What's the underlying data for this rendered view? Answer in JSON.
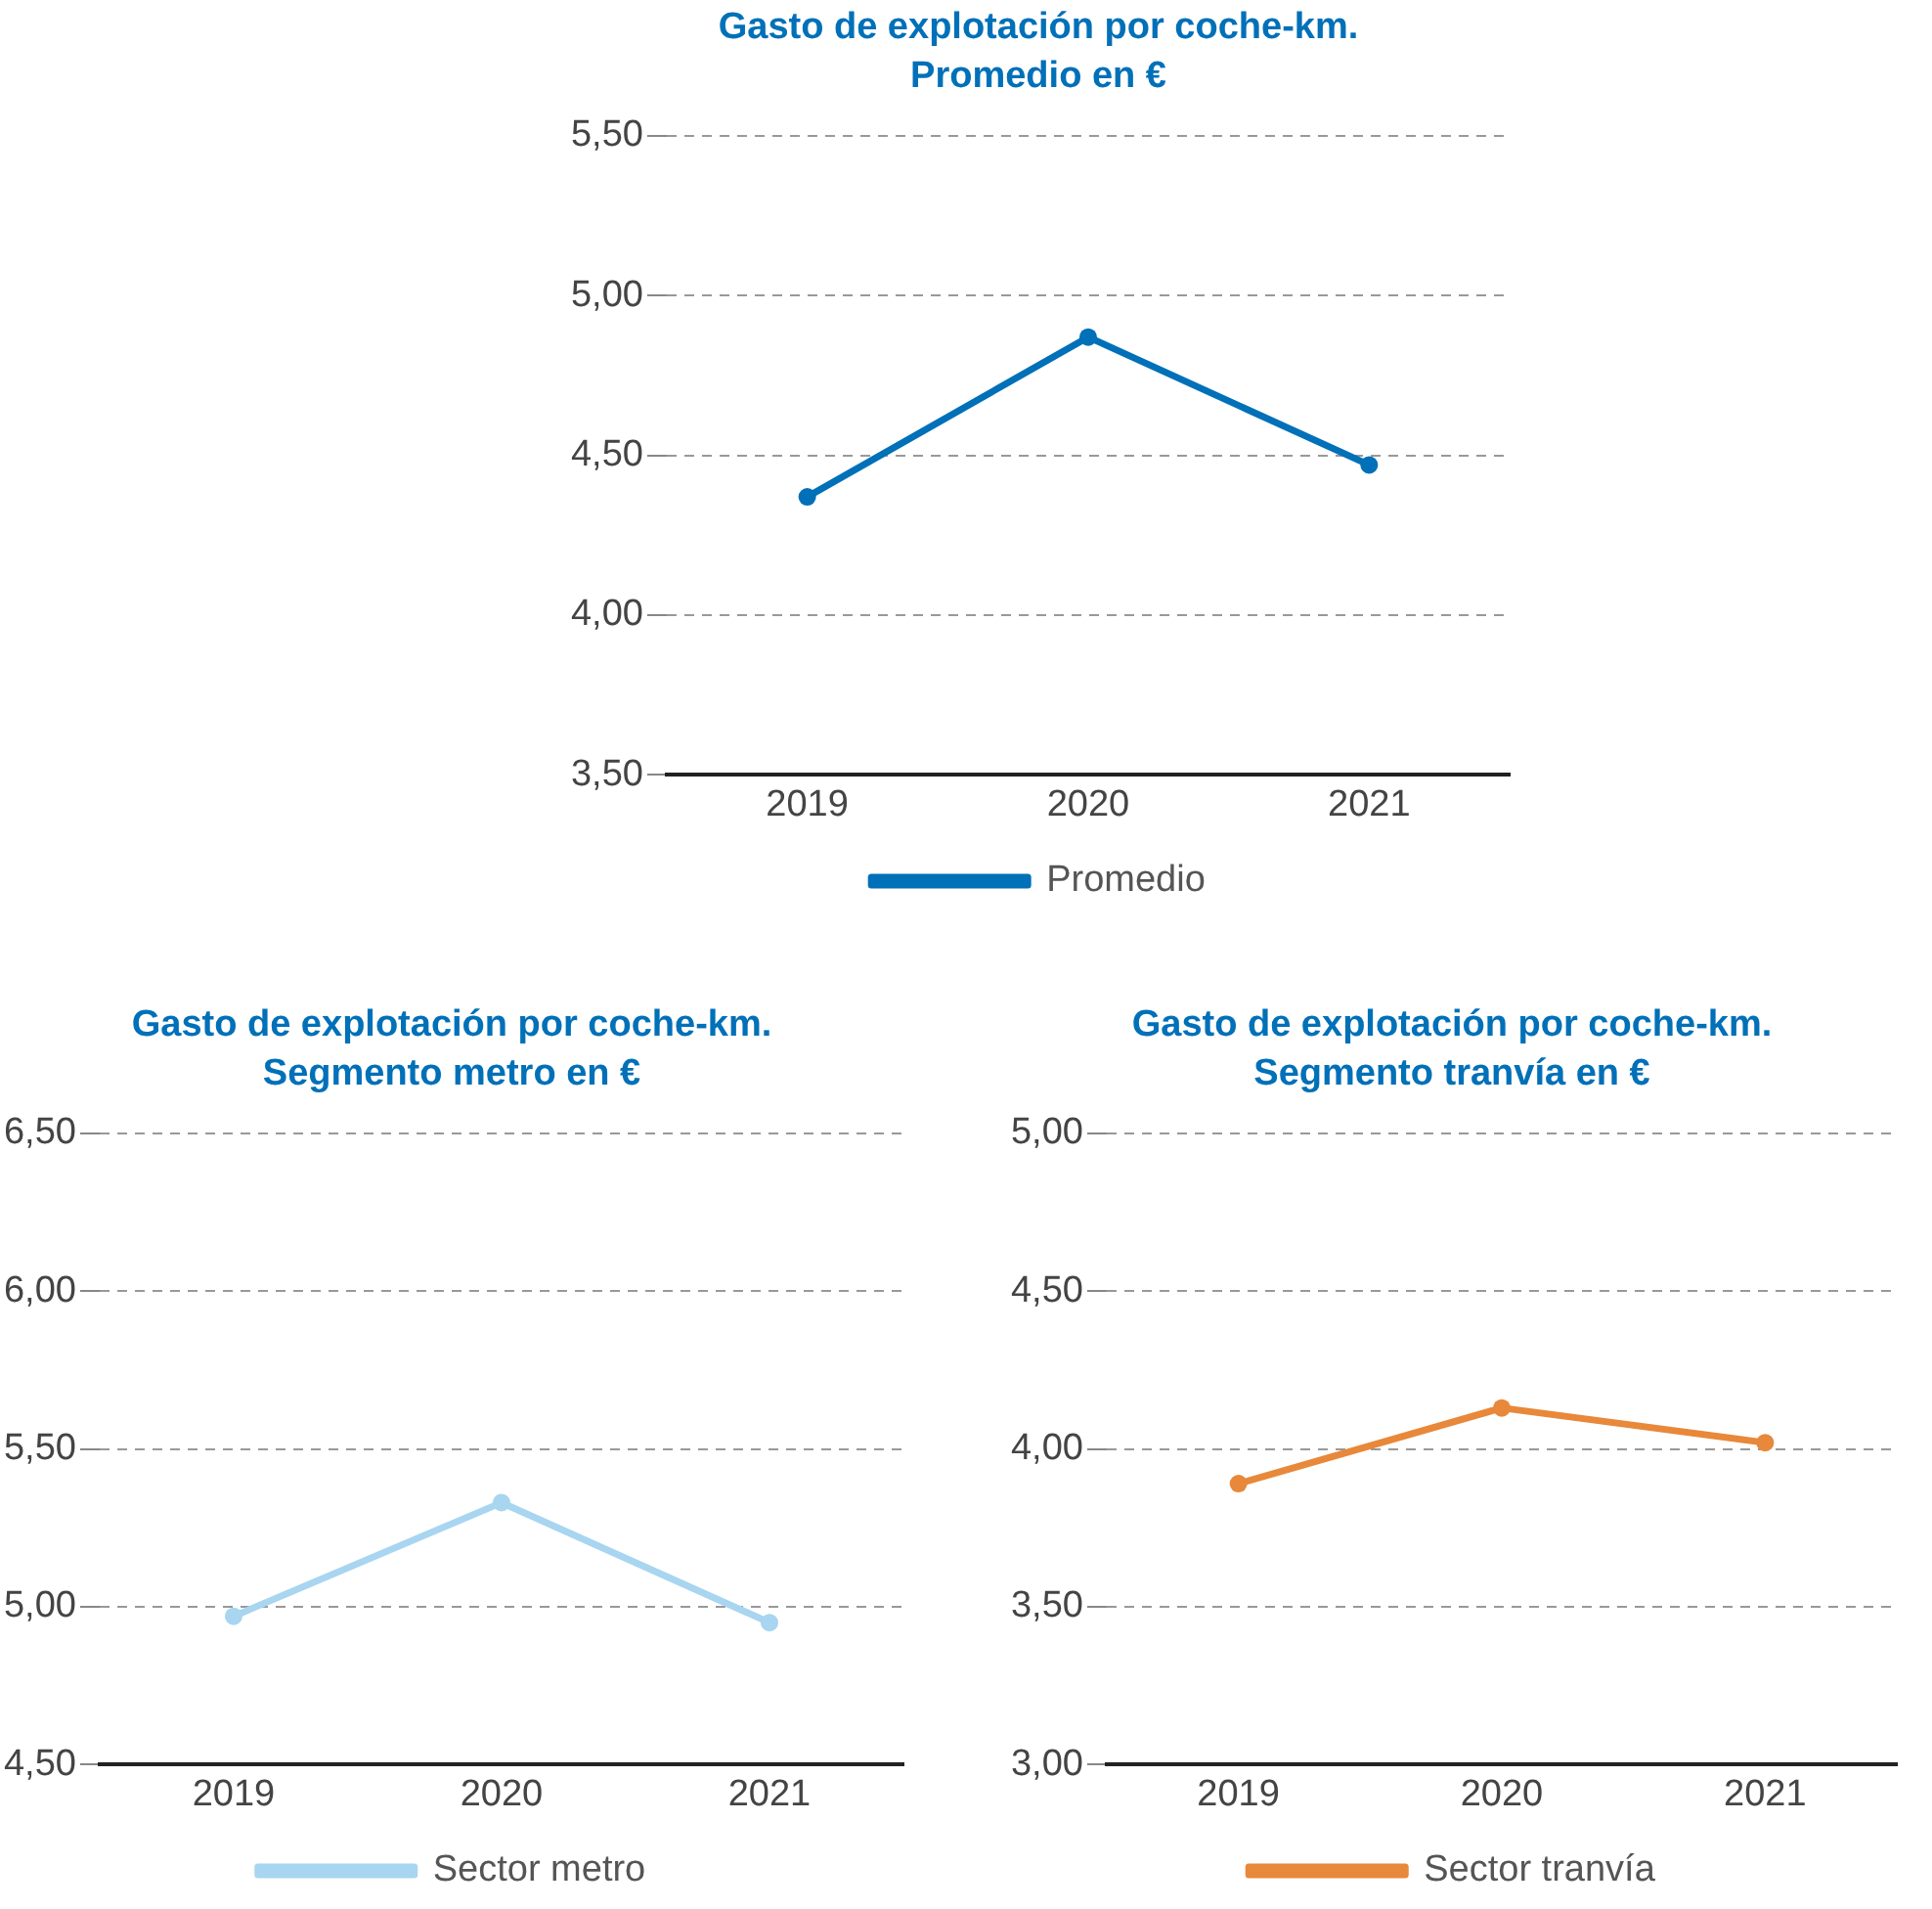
{
  "chart_data": [
    {
      "type": "line",
      "title": "Gasto de explotación por coche-km.\nPromedio en €",
      "categories": [
        "2019",
        "2020",
        "2021"
      ],
      "series": [
        {
          "name": "Promedio",
          "color": "#0070b8",
          "values": [
            4.37,
            4.87,
            4.47
          ]
        }
      ],
      "ylim": [
        3.5,
        5.5
      ],
      "yticks": [
        {
          "value": 3.5,
          "label": "3,50"
        },
        {
          "value": 4,
          "label": "4,00"
        },
        {
          "value": 4.5,
          "label": "4,50"
        },
        {
          "value": 5,
          "label": "5,00"
        },
        {
          "value": 5.5,
          "label": "5,50"
        }
      ],
      "grid": "y",
      "legend": "bottom",
      "marker": "circle",
      "line_style": "solid"
    },
    {
      "type": "line",
      "title": "Gasto de explotación por coche-km.\nSegmento metro en €",
      "categories": [
        "2019",
        "2020",
        "2021"
      ],
      "series": [
        {
          "name": "Sector metro",
          "color": "#a8d5f0",
          "values": [
            4.97,
            5.33,
            4.95
          ]
        }
      ],
      "ylim": [
        4.5,
        6.5
      ],
      "yticks": [
        {
          "value": 4.5,
          "label": "4,50"
        },
        {
          "value": 5,
          "label": "5,00"
        },
        {
          "value": 5.5,
          "label": "5,50"
        },
        {
          "value": 6,
          "label": "6,00"
        },
        {
          "value": 6.5,
          "label": "6,50"
        }
      ],
      "grid": "y",
      "legend": "bottom",
      "marker": "circle",
      "line_style": "solid"
    },
    {
      "type": "line",
      "title": "Gasto de explotación por coche-km.\nSegmento tranvía en €",
      "categories": [
        "2019",
        "2020",
        "2021"
      ],
      "series": [
        {
          "name": "Sector tranvía",
          "color": "#e8883a",
          "values": [
            3.89,
            4.13,
            4.02
          ]
        }
      ],
      "ylim": [
        3,
        5
      ],
      "yticks": [
        {
          "value": 3,
          "label": "3,00"
        },
        {
          "value": 3.5,
          "label": "3,50"
        },
        {
          "value": 4,
          "label": "4,00"
        },
        {
          "value": 4.5,
          "label": "4,50"
        },
        {
          "value": 5,
          "label": "5,00"
        }
      ],
      "grid": "y",
      "legend": "bottom",
      "marker": "circle",
      "line_style": "solid"
    }
  ]
}
